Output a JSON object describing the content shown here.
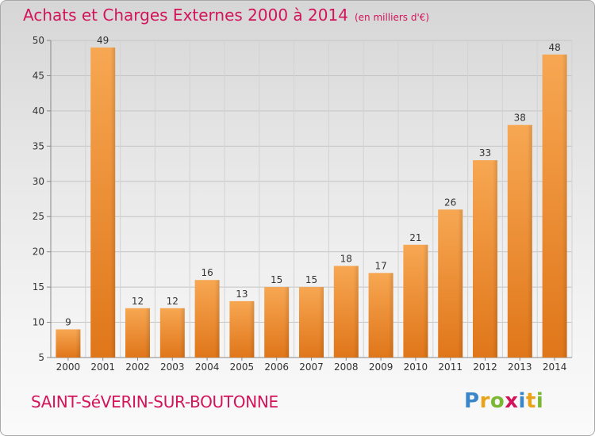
{
  "header": {
    "title": "Achats et Charges Externes 2000 à 2014",
    "unit": "(en milliers d'€)"
  },
  "footer": {
    "commune": "SAINT-SéVERIN-SUR-BOUTONNE",
    "logo": {
      "letters": [
        "P",
        "r",
        "o",
        "x",
        "i",
        "t",
        "i"
      ],
      "colors": [
        "#3a86c8",
        "#e8a318",
        "#7ab834",
        "#d2145a",
        "#3a86c8",
        "#e8a318",
        "#7ab834"
      ]
    }
  },
  "chart_data": {
    "type": "bar",
    "title": "Achats et Charges Externes 2000 à 2014",
    "categories": [
      "2000",
      "2001",
      "2002",
      "2003",
      "2004",
      "2005",
      "2006",
      "2007",
      "2008",
      "2009",
      "2010",
      "2011",
      "2012",
      "2013",
      "2014"
    ],
    "values": [
      9,
      49,
      12,
      12,
      16,
      13,
      15,
      15,
      18,
      17,
      21,
      26,
      33,
      38,
      48
    ],
    "labels": [
      "9",
      "49",
      "12",
      "12",
      "16",
      "13",
      "15",
      "15",
      "18",
      "17",
      "21",
      "26",
      "33",
      "38",
      "48"
    ],
    "ylim": [
      5,
      50
    ],
    "yticks": [
      5,
      10,
      15,
      20,
      25,
      30,
      35,
      40,
      45,
      50
    ],
    "ytick_labels": [
      "5",
      "10",
      "15",
      "20",
      "25",
      "30",
      "35",
      "40",
      "45",
      "50"
    ],
    "grid": true,
    "legend": "none",
    "bar_color": "#f28c1e",
    "title_color": "#d2145a"
  }
}
